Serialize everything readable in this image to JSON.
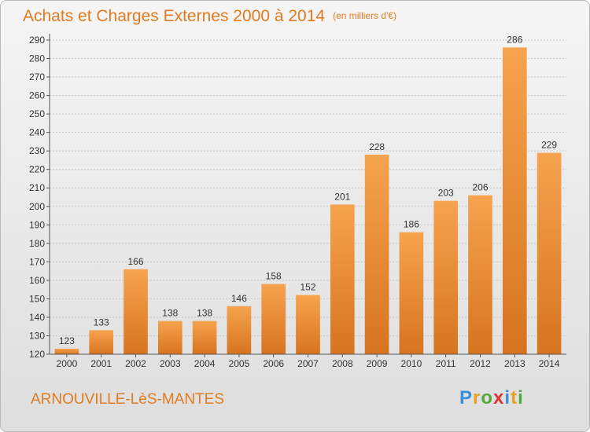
{
  "header": {
    "title": "Achats et Charges Externes 2000 à 2014",
    "unit": "(en milliers d'€)"
  },
  "footer": {
    "city": "ARNOUVILLE-LèS-MANTES",
    "logo": [
      "P",
      "r",
      "o",
      "x",
      "i",
      "t",
      "i"
    ],
    "logo_colors": [
      "#3a8fd9",
      "#e8a020",
      "#52a83a",
      "#e03030",
      "#3a8fd9",
      "#e8a020",
      "#52a83a"
    ]
  },
  "colors": {
    "bar_light": "#f6a34e",
    "bar_dark": "#d7741f",
    "grid": "#c8c8c8",
    "axis": "#555555",
    "text": "#333333",
    "accent": "#e07b20"
  },
  "chart_data": {
    "type": "bar",
    "title": "Achats et Charges Externes 2000 à 2014",
    "subtitle": "(en milliers d'€)",
    "categories": [
      "2000",
      "2001",
      "2002",
      "2003",
      "2004",
      "2005",
      "2006",
      "2007",
      "2008",
      "2009",
      "2010",
      "2011",
      "2012",
      "2013",
      "2014"
    ],
    "values": [
      123,
      133,
      166,
      138,
      138,
      146,
      158,
      152,
      201,
      228,
      186,
      203,
      206,
      286,
      229
    ],
    "ylim": [
      120,
      290
    ],
    "ytick_step": 10,
    "grid": true,
    "data_labels": true
  }
}
